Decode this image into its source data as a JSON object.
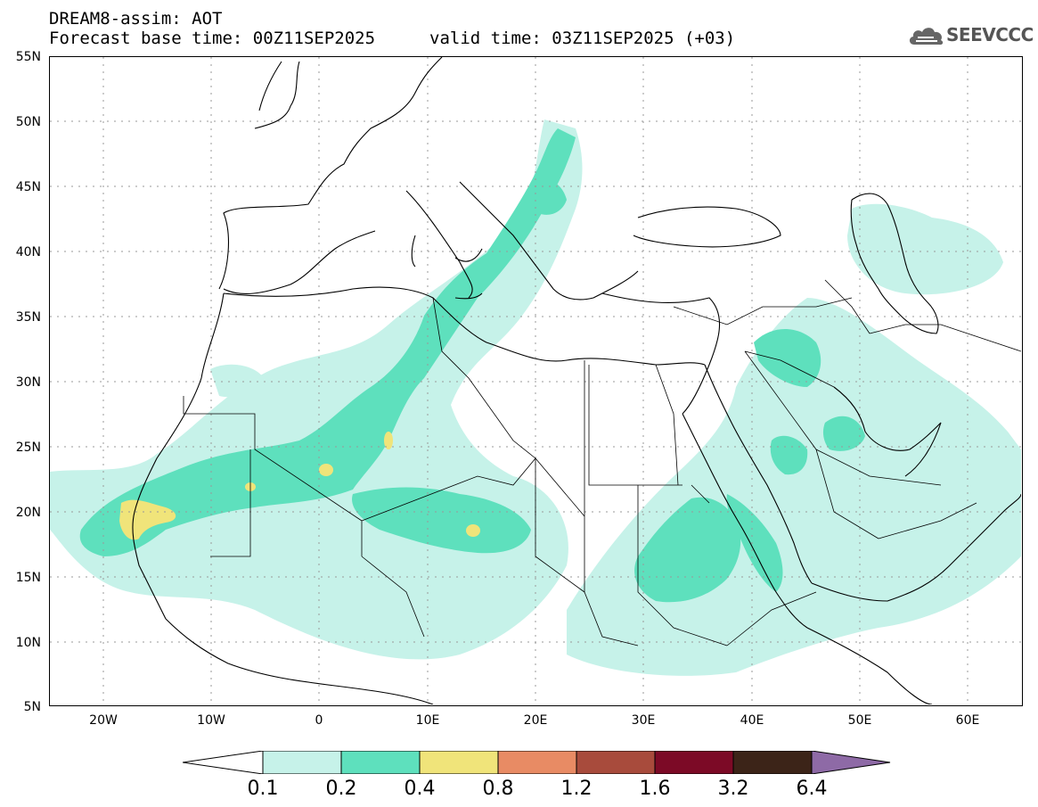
{
  "header": {
    "title": "DREAM8-assim: AOT",
    "base_time": "Forecast base time: 00Z11SEP2025",
    "valid_time": "valid time: 03Z11SEP2025 (+03)"
  },
  "logo": {
    "text": "SEEVCCC",
    "icon": "cloud-icon"
  },
  "map": {
    "lat_labels": [
      "55N",
      "50N",
      "45N",
      "40N",
      "35N",
      "30N",
      "25N",
      "20N",
      "15N",
      "10N",
      "5N"
    ],
    "lon_labels": [
      "20W",
      "10W",
      "0",
      "10E",
      "20E",
      "30E",
      "40E",
      "50E",
      "60E"
    ],
    "colors": {
      "level1": "#c6f2e9",
      "level2": "#5ee0bd",
      "level3": "#f0e47a",
      "coast": "#000000"
    }
  },
  "colorbar": {
    "labels": [
      "0.1",
      "0.2",
      "0.4",
      "0.8",
      "1.2",
      "1.6",
      "3.2",
      "6.4"
    ],
    "colors": [
      "#ffffff",
      "#c6f2e9",
      "#5ee0bd",
      "#f0e47a",
      "#e88b64",
      "#a84b3c",
      "#7c0a26",
      "#3c2418",
      "#8e6aa6"
    ]
  }
}
